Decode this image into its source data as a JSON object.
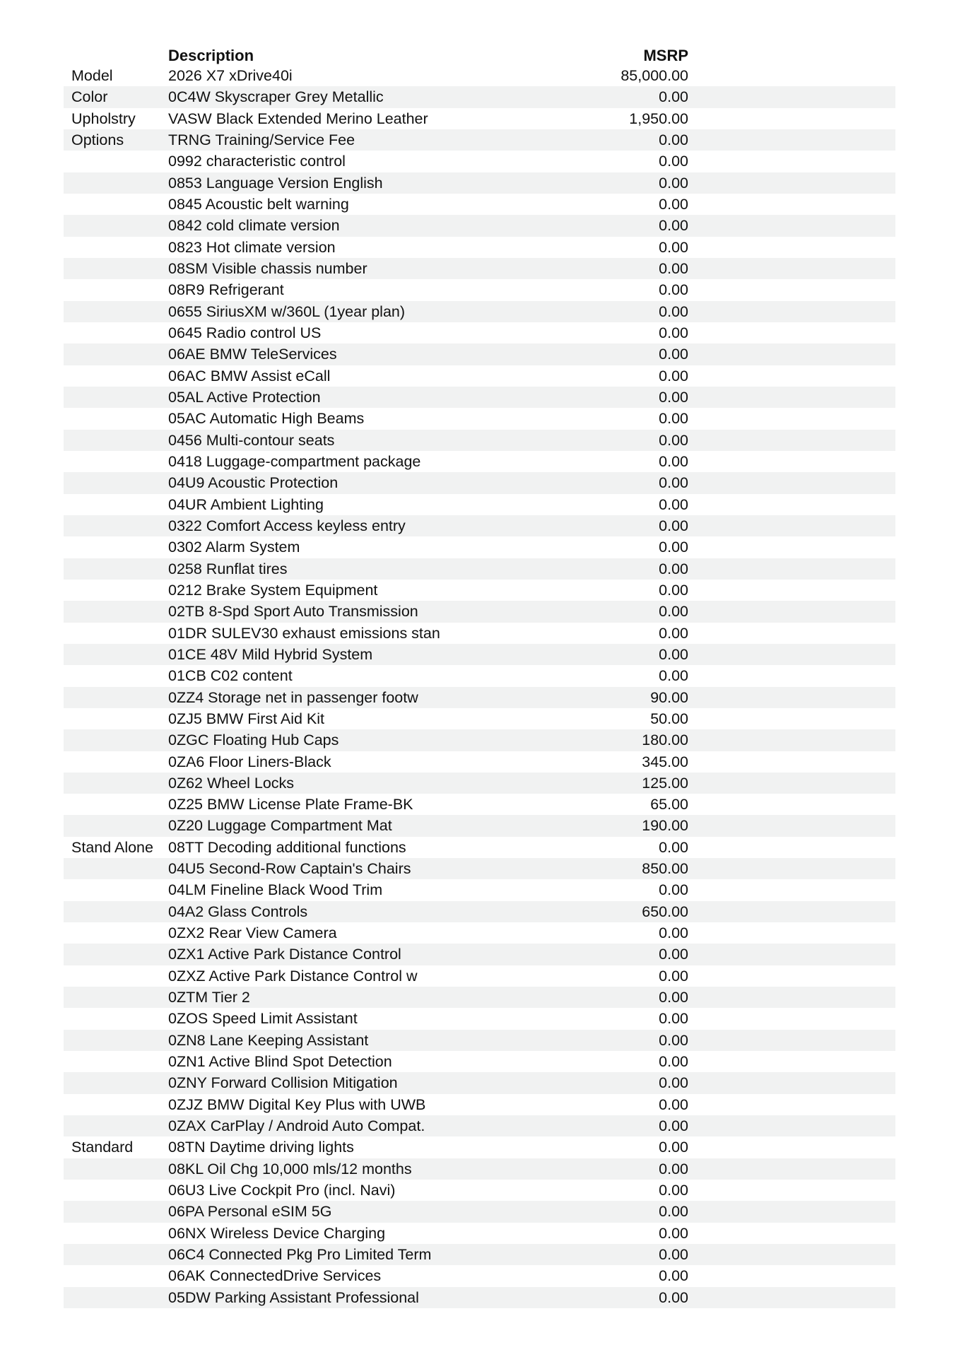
{
  "header": {
    "description": "Description",
    "msrp": "MSRP"
  },
  "rows": [
    {
      "category": "Model",
      "description": "2026 X7 xDrive40i",
      "msrp": "85,000.00"
    },
    {
      "category": "Color",
      "description": "0C4W Skyscraper Grey Metallic",
      "msrp": "0.00"
    },
    {
      "category": "Upholstry",
      "description": "VASW Black Extended Merino Leather",
      "msrp": "1,950.00"
    },
    {
      "category": "Options",
      "description": "TRNG Training/Service Fee",
      "msrp": "0.00"
    },
    {
      "category": "",
      "description": "0992 characteristic control",
      "msrp": "0.00"
    },
    {
      "category": "",
      "description": "0853 Language Version English",
      "msrp": "0.00"
    },
    {
      "category": "",
      "description": "0845 Acoustic belt warning",
      "msrp": "0.00"
    },
    {
      "category": "",
      "description": "0842 cold climate version",
      "msrp": "0.00"
    },
    {
      "category": "",
      "description": "0823 Hot climate version",
      "msrp": "0.00"
    },
    {
      "category": "",
      "description": "08SM Visible chassis number",
      "msrp": "0.00"
    },
    {
      "category": "",
      "description": "08R9 Refrigerant",
      "msrp": "0.00"
    },
    {
      "category": "",
      "description": "0655 SiriusXM w/360L (1year plan)",
      "msrp": "0.00"
    },
    {
      "category": "",
      "description": "0645 Radio control US",
      "msrp": "0.00"
    },
    {
      "category": "",
      "description": "06AE BMW TeleServices",
      "msrp": "0.00"
    },
    {
      "category": "",
      "description": "06AC BMW Assist eCall",
      "msrp": "0.00"
    },
    {
      "category": "",
      "description": "05AL Active Protection",
      "msrp": "0.00"
    },
    {
      "category": "",
      "description": "05AC Automatic High Beams",
      "msrp": "0.00"
    },
    {
      "category": "",
      "description": "0456 Multi-contour seats",
      "msrp": "0.00"
    },
    {
      "category": "",
      "description": "0418 Luggage-compartment package",
      "msrp": "0.00"
    },
    {
      "category": "",
      "description": "04U9 Acoustic Protection",
      "msrp": "0.00"
    },
    {
      "category": "",
      "description": "04UR Ambient Lighting",
      "msrp": "0.00"
    },
    {
      "category": "",
      "description": "0322 Comfort Access keyless entry",
      "msrp": "0.00"
    },
    {
      "category": "",
      "description": "0302 Alarm System",
      "msrp": "0.00"
    },
    {
      "category": "",
      "description": "0258 Runflat tires",
      "msrp": "0.00"
    },
    {
      "category": "",
      "description": "0212 Brake System Equipment",
      "msrp": "0.00"
    },
    {
      "category": "",
      "description": "02TB 8-Spd Sport Auto Transmission",
      "msrp": "0.00"
    },
    {
      "category": "",
      "description": "01DR SULEV30 exhaust emissions stan",
      "msrp": "0.00"
    },
    {
      "category": "",
      "description": "01CE 48V Mild Hybrid System",
      "msrp": "0.00"
    },
    {
      "category": "",
      "description": "01CB C02 content",
      "msrp": "0.00"
    },
    {
      "category": "",
      "description": "0ZZ4 Storage net in passenger footw",
      "msrp": "90.00"
    },
    {
      "category": "",
      "description": "0ZJ5 BMW First Aid Kit",
      "msrp": "50.00"
    },
    {
      "category": "",
      "description": "0ZGC Floating Hub Caps",
      "msrp": "180.00"
    },
    {
      "category": "",
      "description": "0ZA6 Floor Liners-Black",
      "msrp": "345.00"
    },
    {
      "category": "",
      "description": "0Z62 Wheel Locks",
      "msrp": "125.00"
    },
    {
      "category": "",
      "description": "0Z25 BMW License Plate Frame-BK",
      "msrp": "65.00"
    },
    {
      "category": "",
      "description": "0Z20 Luggage Compartment Mat",
      "msrp": "190.00"
    },
    {
      "category": "Stand Alone",
      "description": "08TT Decoding additional functions",
      "msrp": "0.00"
    },
    {
      "category": "",
      "description": "04U5 Second-Row Captain's Chairs",
      "msrp": "850.00"
    },
    {
      "category": "",
      "description": "04LM Fineline Black Wood Trim",
      "msrp": "0.00"
    },
    {
      "category": "",
      "description": "04A2 Glass Controls",
      "msrp": "650.00"
    },
    {
      "category": "",
      "description": "0ZX2 Rear View Camera",
      "msrp": "0.00"
    },
    {
      "category": "",
      "description": "0ZX1 Active Park Distance Control",
      "msrp": "0.00"
    },
    {
      "category": "",
      "description": "0ZXZ Active Park Distance Control w",
      "msrp": "0.00"
    },
    {
      "category": "",
      "description": "0ZTM Tier 2",
      "msrp": "0.00"
    },
    {
      "category": "",
      "description": "0ZOS Speed Limit Assistant",
      "msrp": "0.00"
    },
    {
      "category": "",
      "description": "0ZN8 Lane Keeping Assistant",
      "msrp": "0.00"
    },
    {
      "category": "",
      "description": "0ZN1 Active Blind Spot Detection",
      "msrp": "0.00"
    },
    {
      "category": "",
      "description": "0ZNY Forward Collision Mitigation",
      "msrp": "0.00"
    },
    {
      "category": "",
      "description": "0ZJZ BMW Digital Key Plus with UWB",
      "msrp": "0.00"
    },
    {
      "category": "",
      "description": "0ZAX CarPlay / Android Auto Compat.",
      "msrp": "0.00"
    },
    {
      "category": "Standard",
      "description": "08TN Daytime driving lights",
      "msrp": "0.00"
    },
    {
      "category": "",
      "description": "08KL Oil Chg 10,000 mls/12 months",
      "msrp": "0.00"
    },
    {
      "category": "",
      "description": "06U3 Live Cockpit Pro (incl. Navi)",
      "msrp": "0.00"
    },
    {
      "category": "",
      "description": "06PA Personal eSIM 5G",
      "msrp": "0.00"
    },
    {
      "category": "",
      "description": "06NX Wireless Device Charging",
      "msrp": "0.00"
    },
    {
      "category": "",
      "description": "06C4 Connected Pkg Pro Limited Term",
      "msrp": "0.00"
    },
    {
      "category": "",
      "description": "06AK ConnectedDrive Services",
      "msrp": "0.00"
    },
    {
      "category": "",
      "description": "05DW Parking Assistant Professional",
      "msrp": "0.00"
    }
  ]
}
